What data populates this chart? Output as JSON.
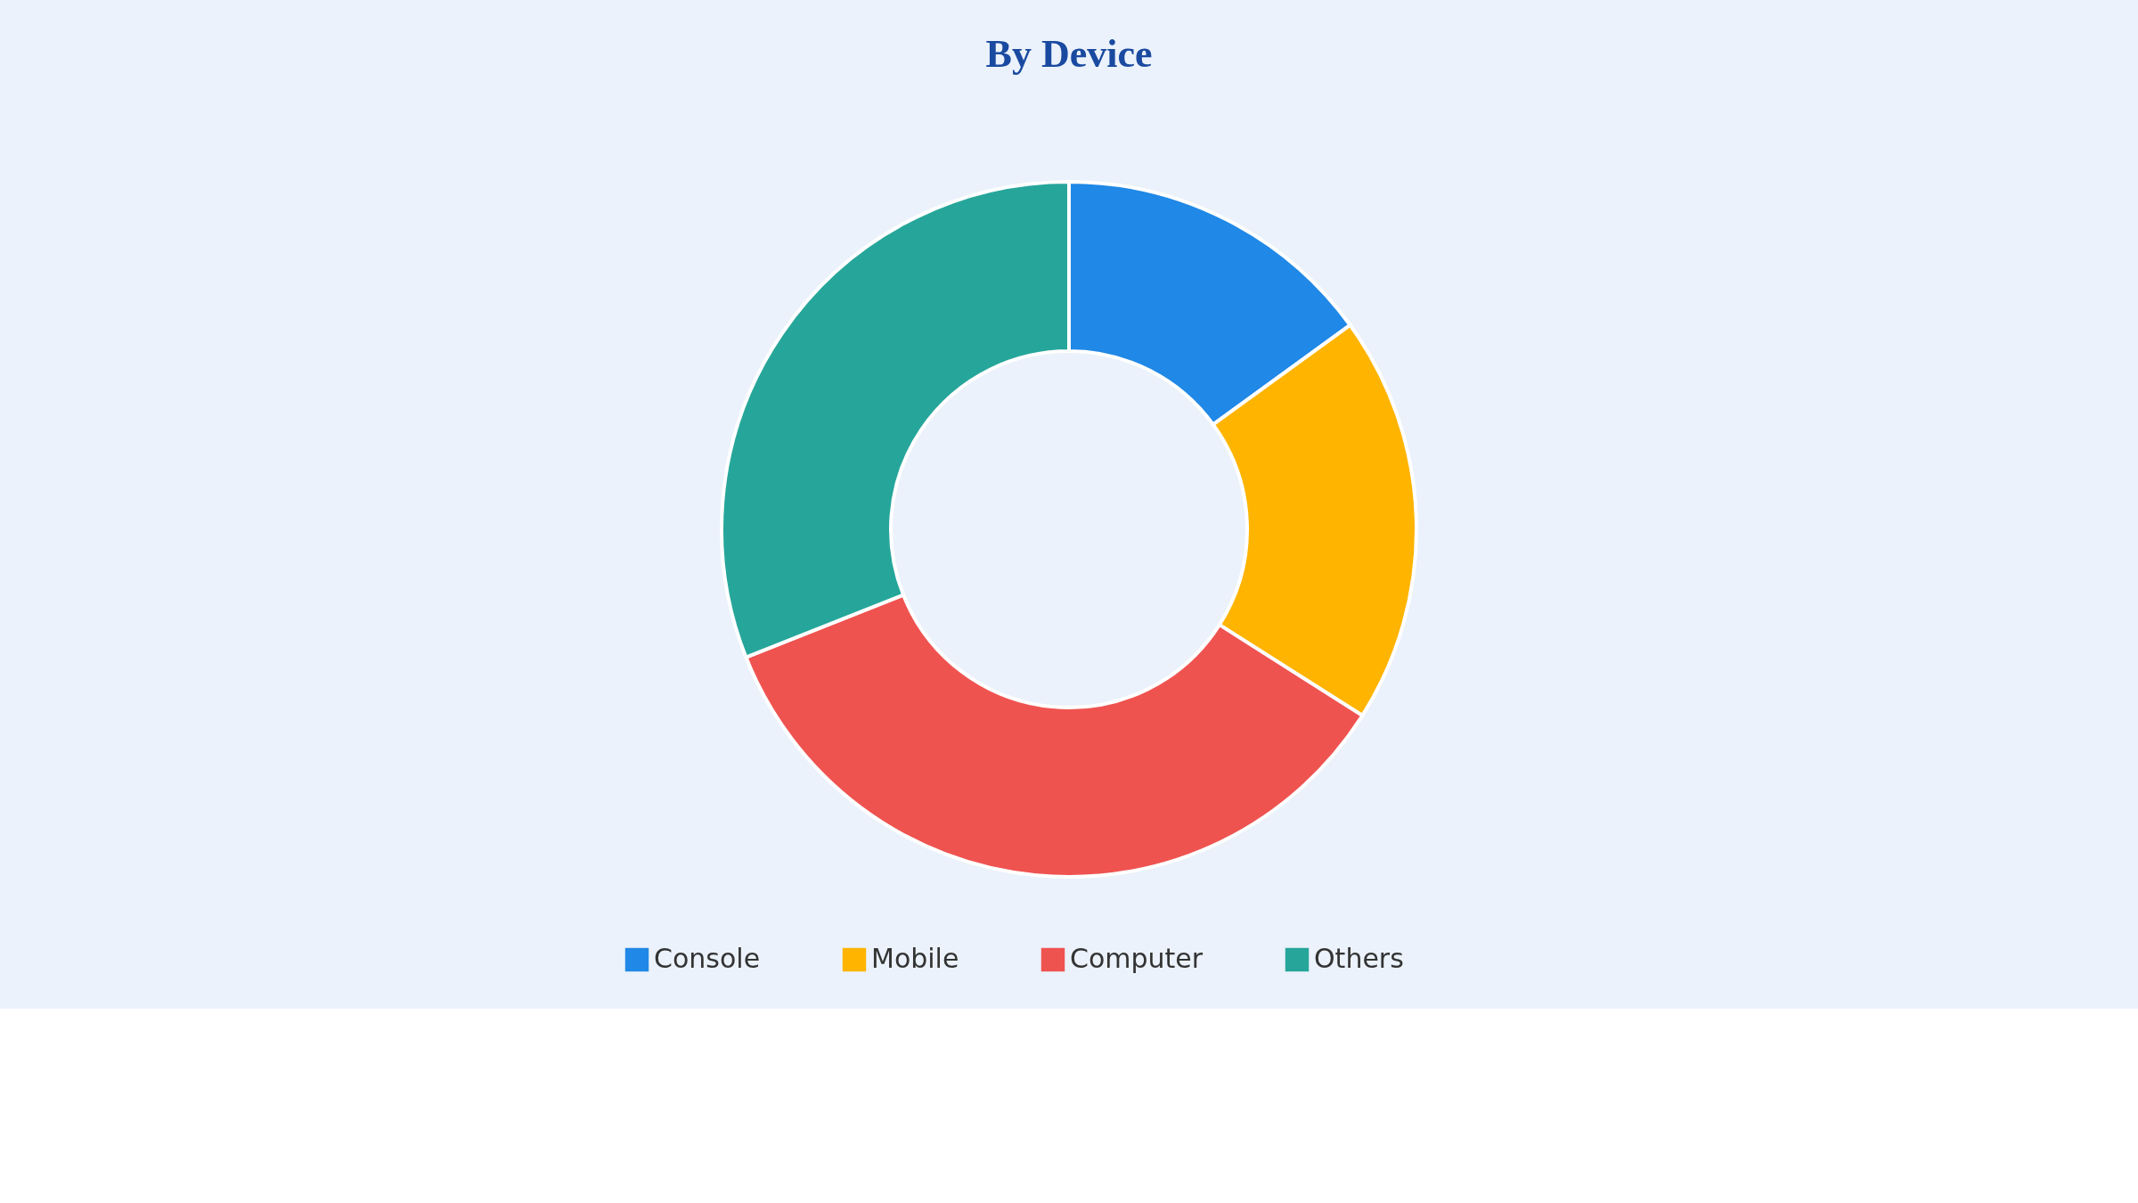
{
  "chart_data": {
    "type": "donut",
    "title": "By Device",
    "categories": [
      "Console",
      "Mobile",
      "Computer",
      "Others"
    ],
    "values": [
      15,
      19,
      35,
      31
    ],
    "colors": [
      "#2088e6",
      "#ffb400",
      "#ef5350",
      "#26a69a"
    ],
    "legend": "bottom"
  }
}
